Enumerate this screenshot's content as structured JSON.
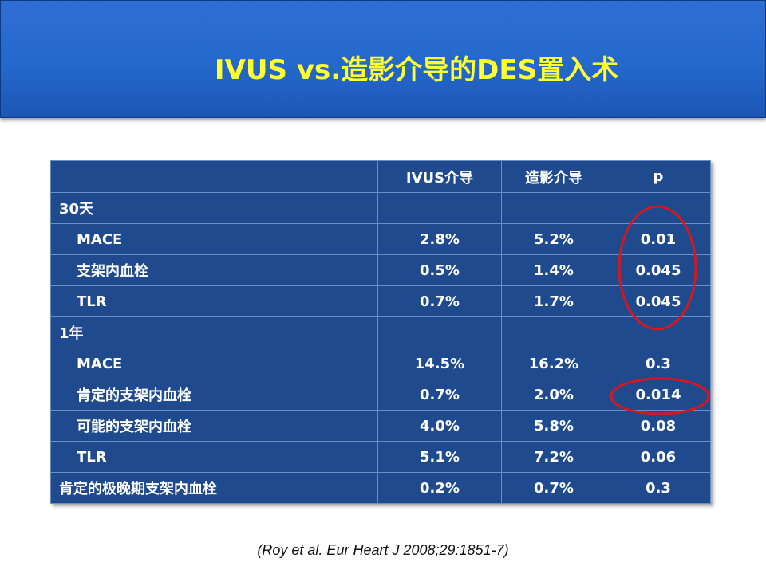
{
  "slide": {
    "title": "IVUS vs.造影介导的DES置入术",
    "citation": "(Roy et al. Eur Heart J 2008;29:1851-7)"
  },
  "table": {
    "headers": [
      "",
      "IVUS介导",
      "造影介导",
      "p"
    ],
    "rows": [
      {
        "label": "30天",
        "c1": "",
        "c2": "",
        "p": ""
      },
      {
        "label": "MACE",
        "c1": "2.8%",
        "c2": "5.2%",
        "p": "0.01"
      },
      {
        "label": "支架内血栓",
        "c1": "0.5%",
        "c2": "1.4%",
        "p": "0.045"
      },
      {
        "label": "TLR",
        "c1": "0.7%",
        "c2": "1.7%",
        "p": "0.045"
      },
      {
        "label": "1年",
        "c1": "",
        "c2": "",
        "p": ""
      },
      {
        "label": "MACE",
        "c1": "14.5%",
        "c2": "16.2%",
        "p": "0.3"
      },
      {
        "label": "肯定的支架内血栓",
        "c1": "0.7%",
        "c2": "2.0%",
        "p": "0.014"
      },
      {
        "label": "可能的支架内血栓",
        "c1": "4.0%",
        "c2": "5.8%",
        "p": "0.08"
      },
      {
        "label": "TLR",
        "c1": "5.1%",
        "c2": "7.2%",
        "p": "0.06"
      },
      {
        "label": "肯定的极晚期支架内血栓",
        "c1": "0.2%",
        "c2": "0.7%",
        "p": "0.3"
      }
    ]
  },
  "colors": {
    "title": "#ffff33",
    "header_band": "#2468cc",
    "table_cell": "#1f4a8e",
    "highlight_ellipse": "#d8161e"
  }
}
